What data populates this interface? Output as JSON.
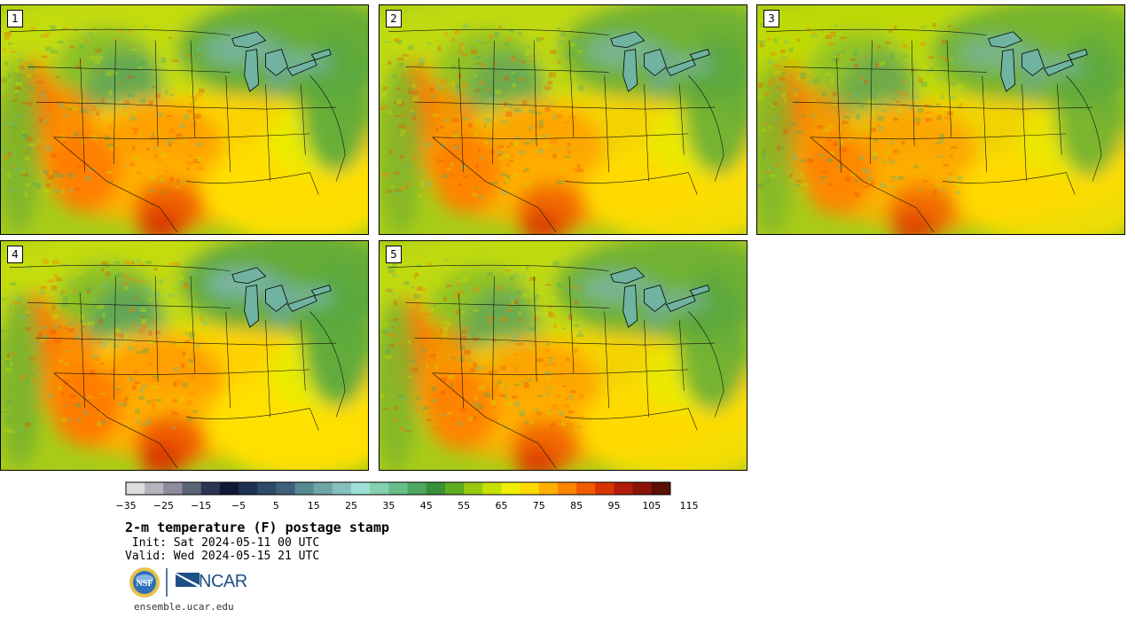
{
  "panels": [
    {
      "label": "1"
    },
    {
      "label": "2"
    },
    {
      "label": "3"
    },
    {
      "label": "4"
    },
    {
      "label": "5"
    }
  ],
  "colorbar": {
    "ticks": [
      "−35",
      "−25",
      "−15",
      "−5",
      "5",
      "15",
      "25",
      "35",
      "45",
      "55",
      "65",
      "75",
      "85",
      "95",
      "105",
      "115"
    ],
    "colors": [
      "#dcdcdc",
      "#b4b4bc",
      "#8c8c9c",
      "#5c6478",
      "#2c3654",
      "#101a34",
      "#1e3050",
      "#2e4a66",
      "#3e6078",
      "#558a92",
      "#6ea5a6",
      "#86c0be",
      "#9ee0d6",
      "#84d0b0",
      "#68be88",
      "#4ca860",
      "#3a9038",
      "#60ac20",
      "#98c810",
      "#c8e000",
      "#f0f000",
      "#ffd800",
      "#ffb000",
      "#ff8400",
      "#f05a00",
      "#d83400",
      "#b01c08",
      "#8a1406",
      "#5a1004"
    ]
  },
  "text": {
    "title": "2-m temperature (F) postage stamp",
    "init": " Init: Sat 2024-05-11 00 UTC",
    "valid": "Valid: Wed 2024-05-15 21 UTC",
    "logo_nsf": "NSF",
    "logo_ncar": "NCAR",
    "footer": "ensemble.ucar.edu"
  }
}
